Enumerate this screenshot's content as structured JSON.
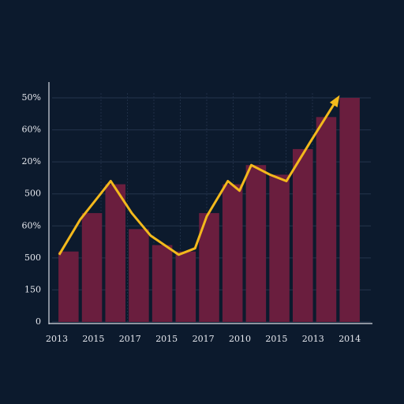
{
  "chart_data": {
    "type": "bar",
    "bar_color": "#6a1e3e",
    "line_color": "#f3b91c",
    "grid": true,
    "categories": [
      null,
      null,
      null,
      null,
      null,
      null,
      null,
      null,
      null,
      null,
      null,
      null,
      null
    ],
    "values": [
      2.2,
      3.4,
      4.3,
      2.9,
      2.4,
      2.2,
      3.4,
      4.3,
      4.9,
      4.6,
      5.4,
      6.4,
      7.0
    ],
    "line": {
      "x": [
        -0.4,
        0.5,
        1.8,
        2.7,
        3.5,
        4.7,
        5.4,
        5.9,
        6.8,
        7.3,
        7.8,
        8.6,
        9.3,
        10.3,
        11.5
      ],
      "values": [
        2.1,
        3.2,
        4.4,
        3.4,
        2.7,
        2.1,
        2.3,
        3.3,
        4.4,
        4.1,
        4.9,
        4.6,
        4.4,
        5.6,
        7.0
      ]
    },
    "xlim": [
      -0.5,
      12.5
    ],
    "ylim": [
      0,
      7.2
    ],
    "yticks": [
      {
        "value": 0,
        "label": "0"
      },
      {
        "value": 1,
        "label": "150"
      },
      {
        "value": 2,
        "label": "500"
      },
      {
        "value": 3,
        "label": "60%"
      },
      {
        "value": 4,
        "label": "500"
      },
      {
        "value": 5,
        "label": "20%"
      },
      {
        "value": 6,
        "label": "60%"
      },
      {
        "value": 7,
        "label": "50%"
      }
    ],
    "xtick_labels": [
      "2013",
      "2015",
      "2017",
      "2015",
      "2017",
      "2010",
      "2015",
      "2013",
      "2014"
    ]
  }
}
